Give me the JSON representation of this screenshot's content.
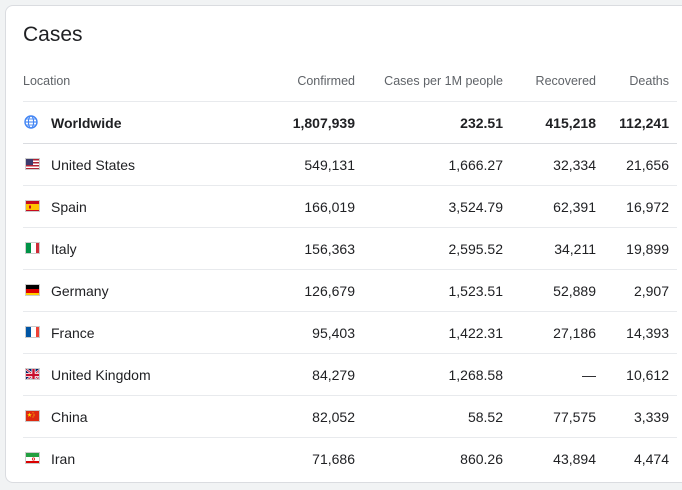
{
  "card": {
    "title": "Cases"
  },
  "columns": {
    "location": "Location",
    "confirmed": "Confirmed",
    "per_million": "Cases per 1M people",
    "recovered": "Recovered",
    "deaths": "Deaths"
  },
  "worldwide": {
    "name": "Worldwide",
    "confirmed": "1,807,939",
    "per_million": "232.51",
    "recovered": "415,218",
    "deaths": "112,241",
    "icon": "globe-icon"
  },
  "rows": [
    {
      "name": "United States",
      "confirmed": "549,131",
      "per_million": "1,666.27",
      "recovered": "32,334",
      "deaths": "21,656",
      "flag": "us-flag-icon"
    },
    {
      "name": "Spain",
      "confirmed": "166,019",
      "per_million": "3,524.79",
      "recovered": "62,391",
      "deaths": "16,972",
      "flag": "spain-flag-icon"
    },
    {
      "name": "Italy",
      "confirmed": "156,363",
      "per_million": "2,595.52",
      "recovered": "34,211",
      "deaths": "19,899",
      "flag": "italy-flag-icon"
    },
    {
      "name": "Germany",
      "confirmed": "126,679",
      "per_million": "1,523.51",
      "recovered": "52,889",
      "deaths": "2,907",
      "flag": "germany-flag-icon"
    },
    {
      "name": "France",
      "confirmed": "95,403",
      "per_million": "1,422.31",
      "recovered": "27,186",
      "deaths": "14,393",
      "flag": "france-flag-icon"
    },
    {
      "name": "United Kingdom",
      "confirmed": "84,279",
      "per_million": "1,268.58",
      "recovered": "—",
      "deaths": "10,612",
      "flag": "uk-flag-icon"
    },
    {
      "name": "China",
      "confirmed": "82,052",
      "per_million": "58.52",
      "recovered": "77,575",
      "deaths": "3,339",
      "flag": "china-flag-icon"
    },
    {
      "name": "Iran",
      "confirmed": "71,686",
      "per_million": "860.26",
      "recovered": "43,894",
      "deaths": "4,474",
      "flag": "iran-flag-icon"
    }
  ],
  "colors": {
    "globe": "#4285f4",
    "header_text": "#5f6368",
    "body_text": "#202124",
    "divider": "#e8eaed"
  }
}
